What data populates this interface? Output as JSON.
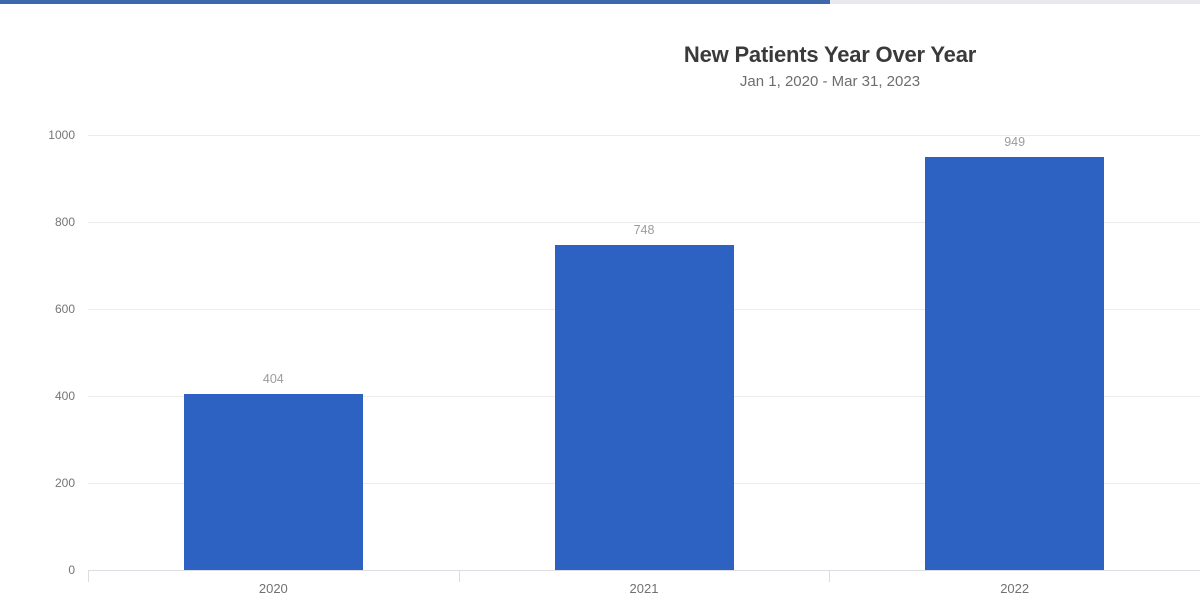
{
  "header": {
    "progress": {
      "fill_color": "#3d69ac",
      "track_color": "#e8e9ec"
    }
  },
  "chart_data": {
    "type": "bar",
    "title": "New Patients Year Over Year",
    "subtitle": "Jan 1, 2020 - Mar 31, 2023",
    "categories": [
      "2020",
      "2021",
      "2022"
    ],
    "values": [
      404,
      748,
      949
    ],
    "yticks": [
      0,
      200,
      400,
      600,
      800,
      1000
    ],
    "ylim": [
      0,
      1000
    ],
    "grid": true,
    "legend": "none",
    "bar_color": "#2d62c2"
  },
  "colors": {
    "bar": "#2d62c2",
    "progress_fill": "#3d69ac",
    "progress_track": "#e8e9ec",
    "gridline": "#ececec",
    "axis": "#dcdde3",
    "y_label": "#757575",
    "x_label": "#717175",
    "value_label": "#9b9b9b",
    "title": "#3a3a3a",
    "subtitle": "#6d6d6d"
  }
}
